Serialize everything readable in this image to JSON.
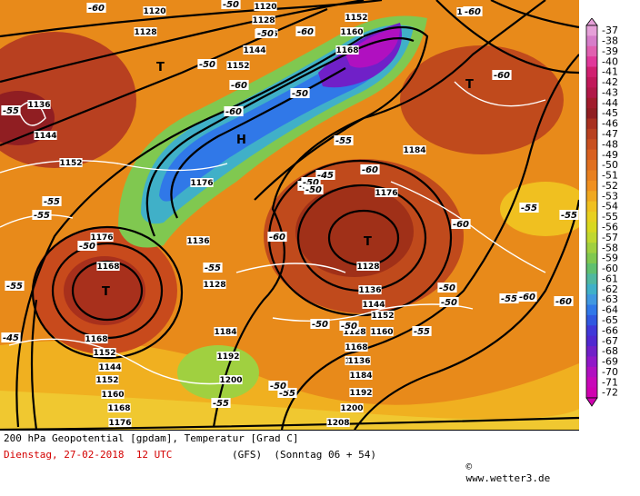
{
  "map": {
    "pressure_letters": [
      {
        "text": "T",
        "kind": "low"
      },
      {
        "text": "T",
        "kind": "low"
      },
      {
        "text": "T",
        "kind": "low"
      },
      {
        "text": "T",
        "kind": "low"
      },
      {
        "text": "H",
        "kind": "high"
      }
    ],
    "geopotential_labels": [
      "1120",
      "1128",
      "1128",
      "1120",
      "1136",
      "1144",
      "1152",
      "1152",
      "1160",
      "1168",
      "1176",
      "1136",
      "1144",
      "1152",
      "1176",
      "1168",
      "1168",
      "1136",
      "1128",
      "1128",
      "1136",
      "1144",
      "1152",
      "1160",
      "1168",
      "1176",
      "1184",
      "1192",
      "1200",
      "1208",
      "1152",
      "1144",
      "1152",
      "1160",
      "1168",
      "1176",
      "1184",
      "1192",
      "1200",
      "1176",
      "1184",
      "1192",
      "1136",
      "1128"
    ],
    "temperature_labels": [
      "-60",
      "-50",
      "-50",
      "-60",
      "-50",
      "-60",
      "-50",
      "-60",
      "-55",
      "-50",
      "-45",
      "-50",
      "-55",
      "-55",
      "-55",
      "-50",
      "-45",
      "-60",
      "-55",
      "-50",
      "-50",
      "-55",
      "-50",
      "-50",
      "-55",
      "-55",
      "-60",
      "-60",
      "-55",
      "-55",
      "-60",
      "-60",
      "-60",
      "-55",
      "-55",
      "-50",
      "-50",
      "-60"
    ]
  },
  "legend": {
    "values": [
      "-37",
      "-38",
      "-39",
      "-40",
      "-41",
      "-42",
      "-43",
      "-44",
      "-45",
      "-46",
      "-47",
      "-48",
      "-49",
      "-50",
      "-51",
      "-52",
      "-53",
      "-54",
      "-55",
      "-56",
      "-57",
      "-58",
      "-59",
      "-60",
      "-61",
      "-62",
      "-63",
      "-64",
      "-65",
      "-66",
      "-67",
      "-68",
      "-69",
      "-70",
      "-71",
      "-72"
    ],
    "colors": [
      "#e5a0d8",
      "#d67dc9",
      "#e060b0",
      "#e0389a",
      "#d02070",
      "#c0185a",
      "#b01848",
      "#a01c2c",
      "#901e22",
      "#a83020",
      "#b84020",
      "#c85020",
      "#d86020",
      "#e07020",
      "#e88020",
      "#f09020",
      "#f0a820",
      "#f0c020",
      "#e8d020",
      "#d8d820",
      "#c0d830",
      "#a0d040",
      "#80c850",
      "#60c070",
      "#50b8a0",
      "#40b0c8",
      "#4098e0",
      "#3078e8",
      "#3058e0",
      "#4038d8",
      "#5028d0",
      "#7020c8",
      "#9018c8",
      "#b010c0",
      "#c808b8",
      "#d000b0"
    ]
  },
  "footer": {
    "line1": "200 hPa Geopotential [gpdam], Temperatur [Grad C]",
    "line2_date": "Dienstag, 27-02-2018  12 UTC",
    "line2_model": "(GFS)  (Sonntag 06 + 54)",
    "line2_site": "www.wetter3.de"
  },
  "colors": {
    "footer_date": "#d40000",
    "text": "#000000"
  }
}
